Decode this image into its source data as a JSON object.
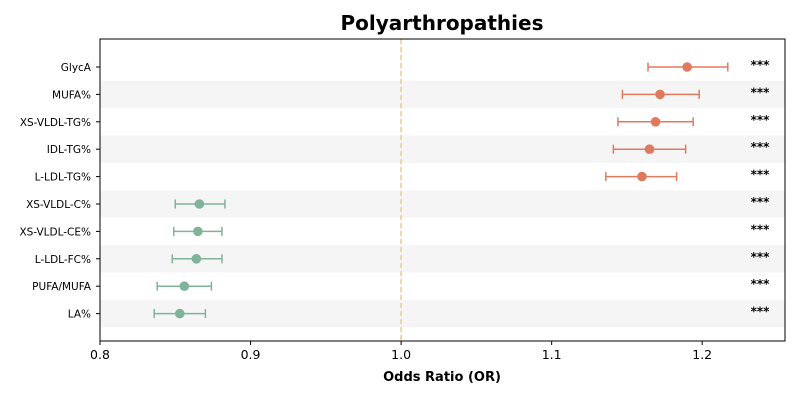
{
  "chart_data": {
    "type": "scatter",
    "title": "Polyarthropathies",
    "xlabel": "Odds Ratio (OR)",
    "ylabel": "",
    "xlim": [
      0.8,
      1.255
    ],
    "xticks": [
      "0.8",
      "0.9",
      "1.0",
      "1.1",
      "1.2"
    ],
    "reference_line": 1.0,
    "grid": false,
    "row_band_color": "#f5f5f5",
    "colors": {
      "increase": "#e07a5f",
      "decrease": "#81b29a",
      "reference": "#f2c98a"
    },
    "rows": [
      {
        "label": "GlycA",
        "or": 1.19,
        "ci_low": 1.164,
        "ci_high": 1.217,
        "sig": "***",
        "direction": "increase"
      },
      {
        "label": "MUFA%",
        "or": 1.172,
        "ci_low": 1.147,
        "ci_high": 1.198,
        "sig": "***",
        "direction": "increase"
      },
      {
        "label": "XS-VLDL-TG%",
        "or": 1.169,
        "ci_low": 1.144,
        "ci_high": 1.194,
        "sig": "***",
        "direction": "increase"
      },
      {
        "label": "IDL-TG%",
        "or": 1.165,
        "ci_low": 1.141,
        "ci_high": 1.189,
        "sig": "***",
        "direction": "increase"
      },
      {
        "label": "L-LDL-TG%",
        "or": 1.16,
        "ci_low": 1.136,
        "ci_high": 1.183,
        "sig": "***",
        "direction": "increase"
      },
      {
        "label": "XS-VLDL-C%",
        "or": 0.866,
        "ci_low": 0.85,
        "ci_high": 0.883,
        "sig": "***",
        "direction": "decrease"
      },
      {
        "label": "XS-VLDL-CE%",
        "or": 0.865,
        "ci_low": 0.849,
        "ci_high": 0.881,
        "sig": "***",
        "direction": "decrease"
      },
      {
        "label": "L-LDL-FC%",
        "or": 0.864,
        "ci_low": 0.848,
        "ci_high": 0.881,
        "sig": "***",
        "direction": "decrease"
      },
      {
        "label": "PUFA/MUFA",
        "or": 0.856,
        "ci_low": 0.838,
        "ci_high": 0.874,
        "sig": "***",
        "direction": "decrease"
      },
      {
        "label": "LA%",
        "or": 0.853,
        "ci_low": 0.836,
        "ci_high": 0.87,
        "sig": "***",
        "direction": "decrease"
      }
    ]
  }
}
